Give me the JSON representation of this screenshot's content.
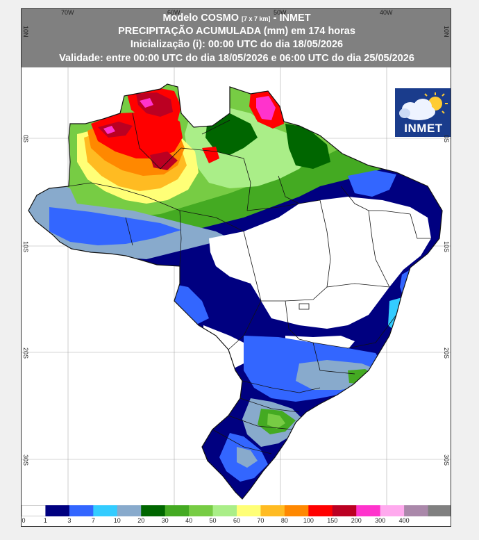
{
  "header": {
    "line1_main": "Modelo COSMO ",
    "line1_small": "[7 x 7 km]",
    "line1_end": " - INMET",
    "line2": "PRECIPITAÇÃO ACUMULADA (mm) em 174 horas",
    "line3": "Inicialização (i): 00:00 UTC do dia 18/05/2026",
    "line4": "Validade: entre 00:00 UTC do dia 18/05/2026 e 06:00 UTC do dia 25/05/2026"
  },
  "axes": {
    "lon_ticks": [
      "70W",
      "60W",
      "50W",
      "40W"
    ],
    "lat_ticks": [
      "10N",
      "0S",
      "10S",
      "20S",
      "30S"
    ]
  },
  "logo": {
    "text": "INMET",
    "icon": "cloud-sun-icon",
    "bg_color": "#1a3c8c"
  },
  "legend": {
    "unit": "mm",
    "labels": [
      "0",
      "1",
      "3",
      "7",
      "10",
      "20",
      "30",
      "40",
      "50",
      "60",
      "70",
      "80",
      "100",
      "150",
      "200",
      "300",
      "400"
    ],
    "colors": [
      "#ffffff",
      "#000080",
      "#3366ff",
      "#33ccff",
      "#88aacc",
      "#006600",
      "#44aa22",
      "#77cc44",
      "#aaee88",
      "#ffff77",
      "#ffbb22",
      "#ff8800",
      "#ff0000",
      "#bb0022",
      "#ff33cc",
      "#ffaaee",
      "#aa88aa",
      "#808080"
    ]
  },
  "map_colors": {
    "dry": "#ffffff",
    "low": "#000080",
    "mid_blue": "#3366ff",
    "cyan": "#33ccff",
    "grayblue": "#88aacc",
    "darkgreen": "#006600",
    "green": "#44aa22",
    "lightgreen": "#77cc44",
    "yellow": "#ffff77",
    "orange": "#ffbb22",
    "red": "#ff0000",
    "darkred": "#bb0022",
    "magenta": "#ff33cc",
    "border": "#111111"
  }
}
